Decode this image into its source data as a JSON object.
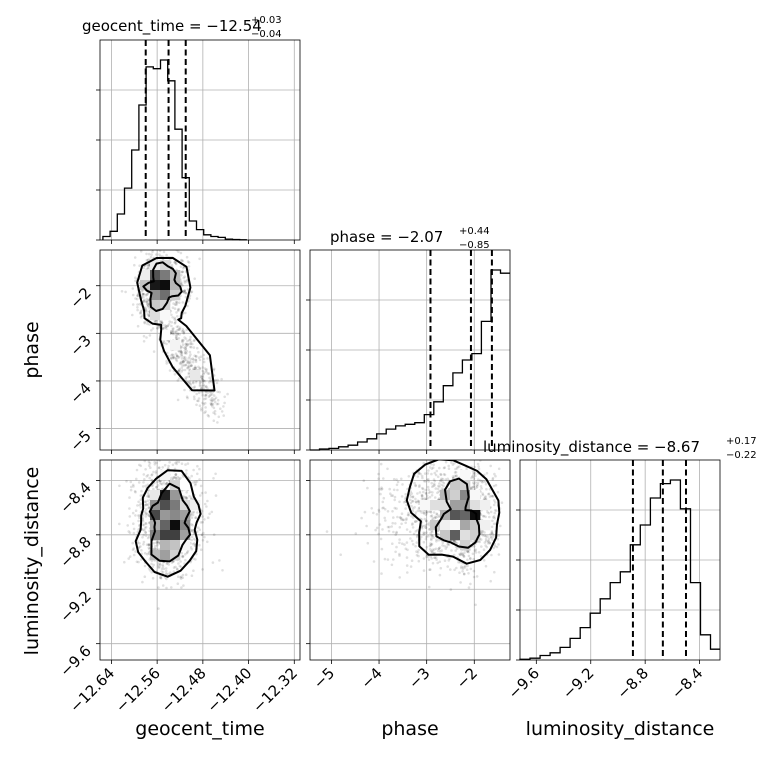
{
  "chart_data": {
    "type": "corner",
    "parameters": [
      "geocent_time",
      "phase",
      "luminosity_distance"
    ],
    "titles": [
      {
        "text": "geocent_time = −12.54",
        "plus": "+0.03",
        "minus": "−0.04",
        "median": -12.54
      },
      {
        "text": "phase = −2.07",
        "plus": "+0.44",
        "minus": "−0.85",
        "median": -2.07
      },
      {
        "text": "luminosity_distance = −8.67",
        "plus": "+0.17",
        "minus": "−0.22",
        "median": -8.67
      }
    ],
    "axes": {
      "geocent_time": {
        "range": [
          -12.66,
          -12.31
        ],
        "ticks": [
          -12.64,
          -12.56,
          -12.48,
          -12.4,
          -12.32
        ],
        "tick_labels": [
          "−12.64",
          "−12.56",
          "−12.48",
          "−12.40",
          "−12.32"
        ]
      },
      "phase": {
        "range": [
          -5.45,
          -1.25
        ],
        "ticks": [
          -5,
          -4,
          -3,
          -2
        ],
        "tick_labels": [
          "−5",
          "−4",
          "−3",
          "−2"
        ]
      },
      "luminosity_distance": {
        "range": [
          -9.72,
          -8.25
        ],
        "ticks": [
          -9.6,
          -9.2,
          -8.8,
          -8.4
        ],
        "tick_labels": [
          "−9.6",
          "−9.2",
          "−8.8",
          "−8.4"
        ]
      }
    },
    "quantiles": {
      "geocent_time": [
        -12.58,
        -12.54,
        -12.51
      ],
      "phase": [
        -2.92,
        -2.07,
        -1.63
      ],
      "luminosity_distance": [
        -8.89,
        -8.67,
        -8.5
      ]
    },
    "histograms": {
      "geocent_time": {
        "bin_start": -12.655,
        "bin_width": 0.0126,
        "counts": [
          2,
          5,
          15,
          30,
          52,
          78,
          100,
          99,
          104,
          92,
          64,
          36,
          11,
          6,
          3,
          2,
          1.5,
          0.5,
          0.3,
          0.1
        ]
      },
      "phase": {
        "bin_start": -5.45,
        "bin_width": 0.2,
        "counts": [
          0,
          0.3,
          0.5,
          1,
          1.5,
          2.5,
          3.5,
          5,
          6.5,
          7.5,
          8,
          8.5,
          11,
          15,
          20,
          24,
          28,
          30,
          40,
          56,
          55
        ]
      },
      "luminosity_distance": {
        "bin_start": -9.72,
        "bin_width": 0.0737,
        "counts": [
          0.4,
          1,
          2.5,
          4,
          7,
          12,
          18,
          26,
          34,
          43,
          49,
          64,
          75,
          90,
          98,
          100,
          84,
          43,
          14,
          6
        ]
      }
    },
    "grid": true,
    "contour_levels": 2
  }
}
